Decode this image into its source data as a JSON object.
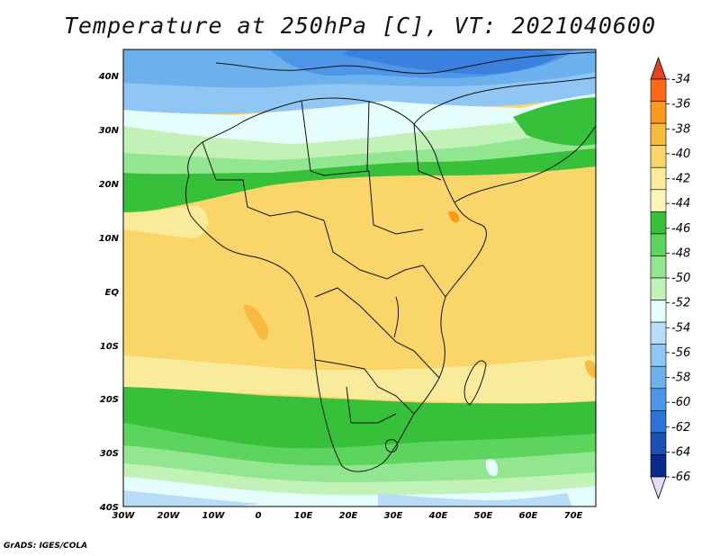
{
  "title": "Temperature at 250hPa [C], VT: 2021040600",
  "credit": "GrADS: IGES/COLA",
  "map": {
    "lat_labels": [
      "40N",
      "30N",
      "20N",
      "10N",
      "EQ",
      "10S",
      "20S",
      "30S",
      "40S"
    ],
    "lon_labels": [
      "30W",
      "20W",
      "10W",
      "0",
      "10E",
      "20E",
      "30E",
      "40E",
      "50E",
      "60E",
      "70E"
    ]
  },
  "colorbar": {
    "levels": [
      "-34",
      "-36",
      "-38",
      "-40",
      "-42",
      "-44",
      "-46",
      "-48",
      "-50",
      "-52",
      "-54",
      "-56",
      "-58",
      "-60",
      "-62",
      "-64",
      "-66"
    ],
    "colors": [
      "#e8421c",
      "#fb6a12",
      "#f99a1b",
      "#f8ba3f",
      "#f9d56a",
      "#faeb9c",
      "#f8f6b8",
      "#37c13a",
      "#5dd45d",
      "#93e690",
      "#c2f2b8",
      "#e6fdfd",
      "#b7ddf9",
      "#8fc6f3",
      "#6cb0ee",
      "#4e96e8",
      "#2d73d8",
      "#1b50b6",
      "#0c2a8c",
      "#e3dcfb"
    ]
  }
}
